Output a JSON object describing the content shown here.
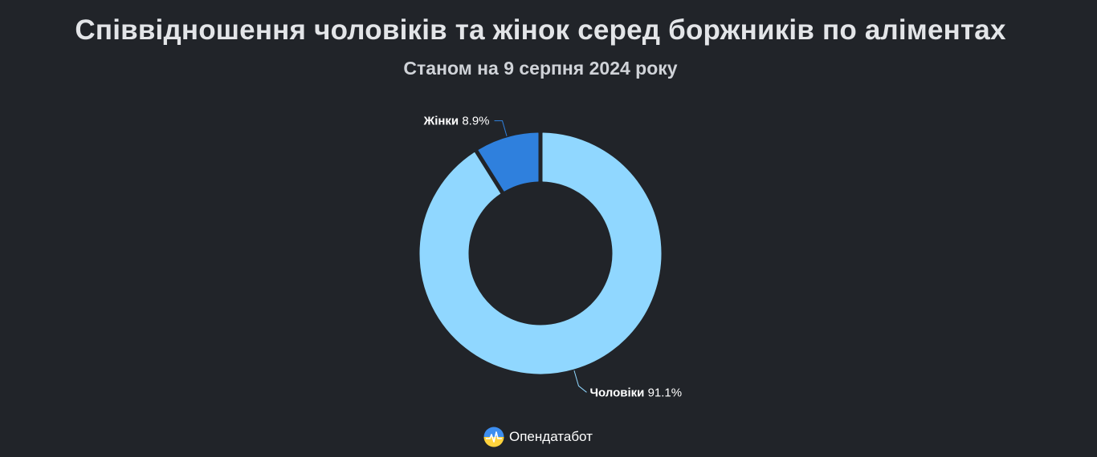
{
  "title": "Співвідношення чоловіків та жінок серед боржників по аліментах",
  "subtitle": "Станом на 9 серпня 2024 року",
  "brand": {
    "name": "Опендатабот",
    "logo_icon": "opendatabot-logo-icon"
  },
  "chart_data": {
    "type": "pie",
    "variant": "donut",
    "slices": [
      {
        "name": "Жінки",
        "value": 8.9,
        "display": "8.9%",
        "color": "#2f80dd"
      },
      {
        "name": "Чоловіки",
        "value": 91.1,
        "display": "91.1%",
        "color": "#90d7ff"
      }
    ],
    "unit": "%",
    "title": "Співвідношення чоловіків та жінок серед боржників по аліментах",
    "subtitle": "Станом на 9 серпня 2024 року",
    "legend": "none",
    "data_labels": true
  }
}
